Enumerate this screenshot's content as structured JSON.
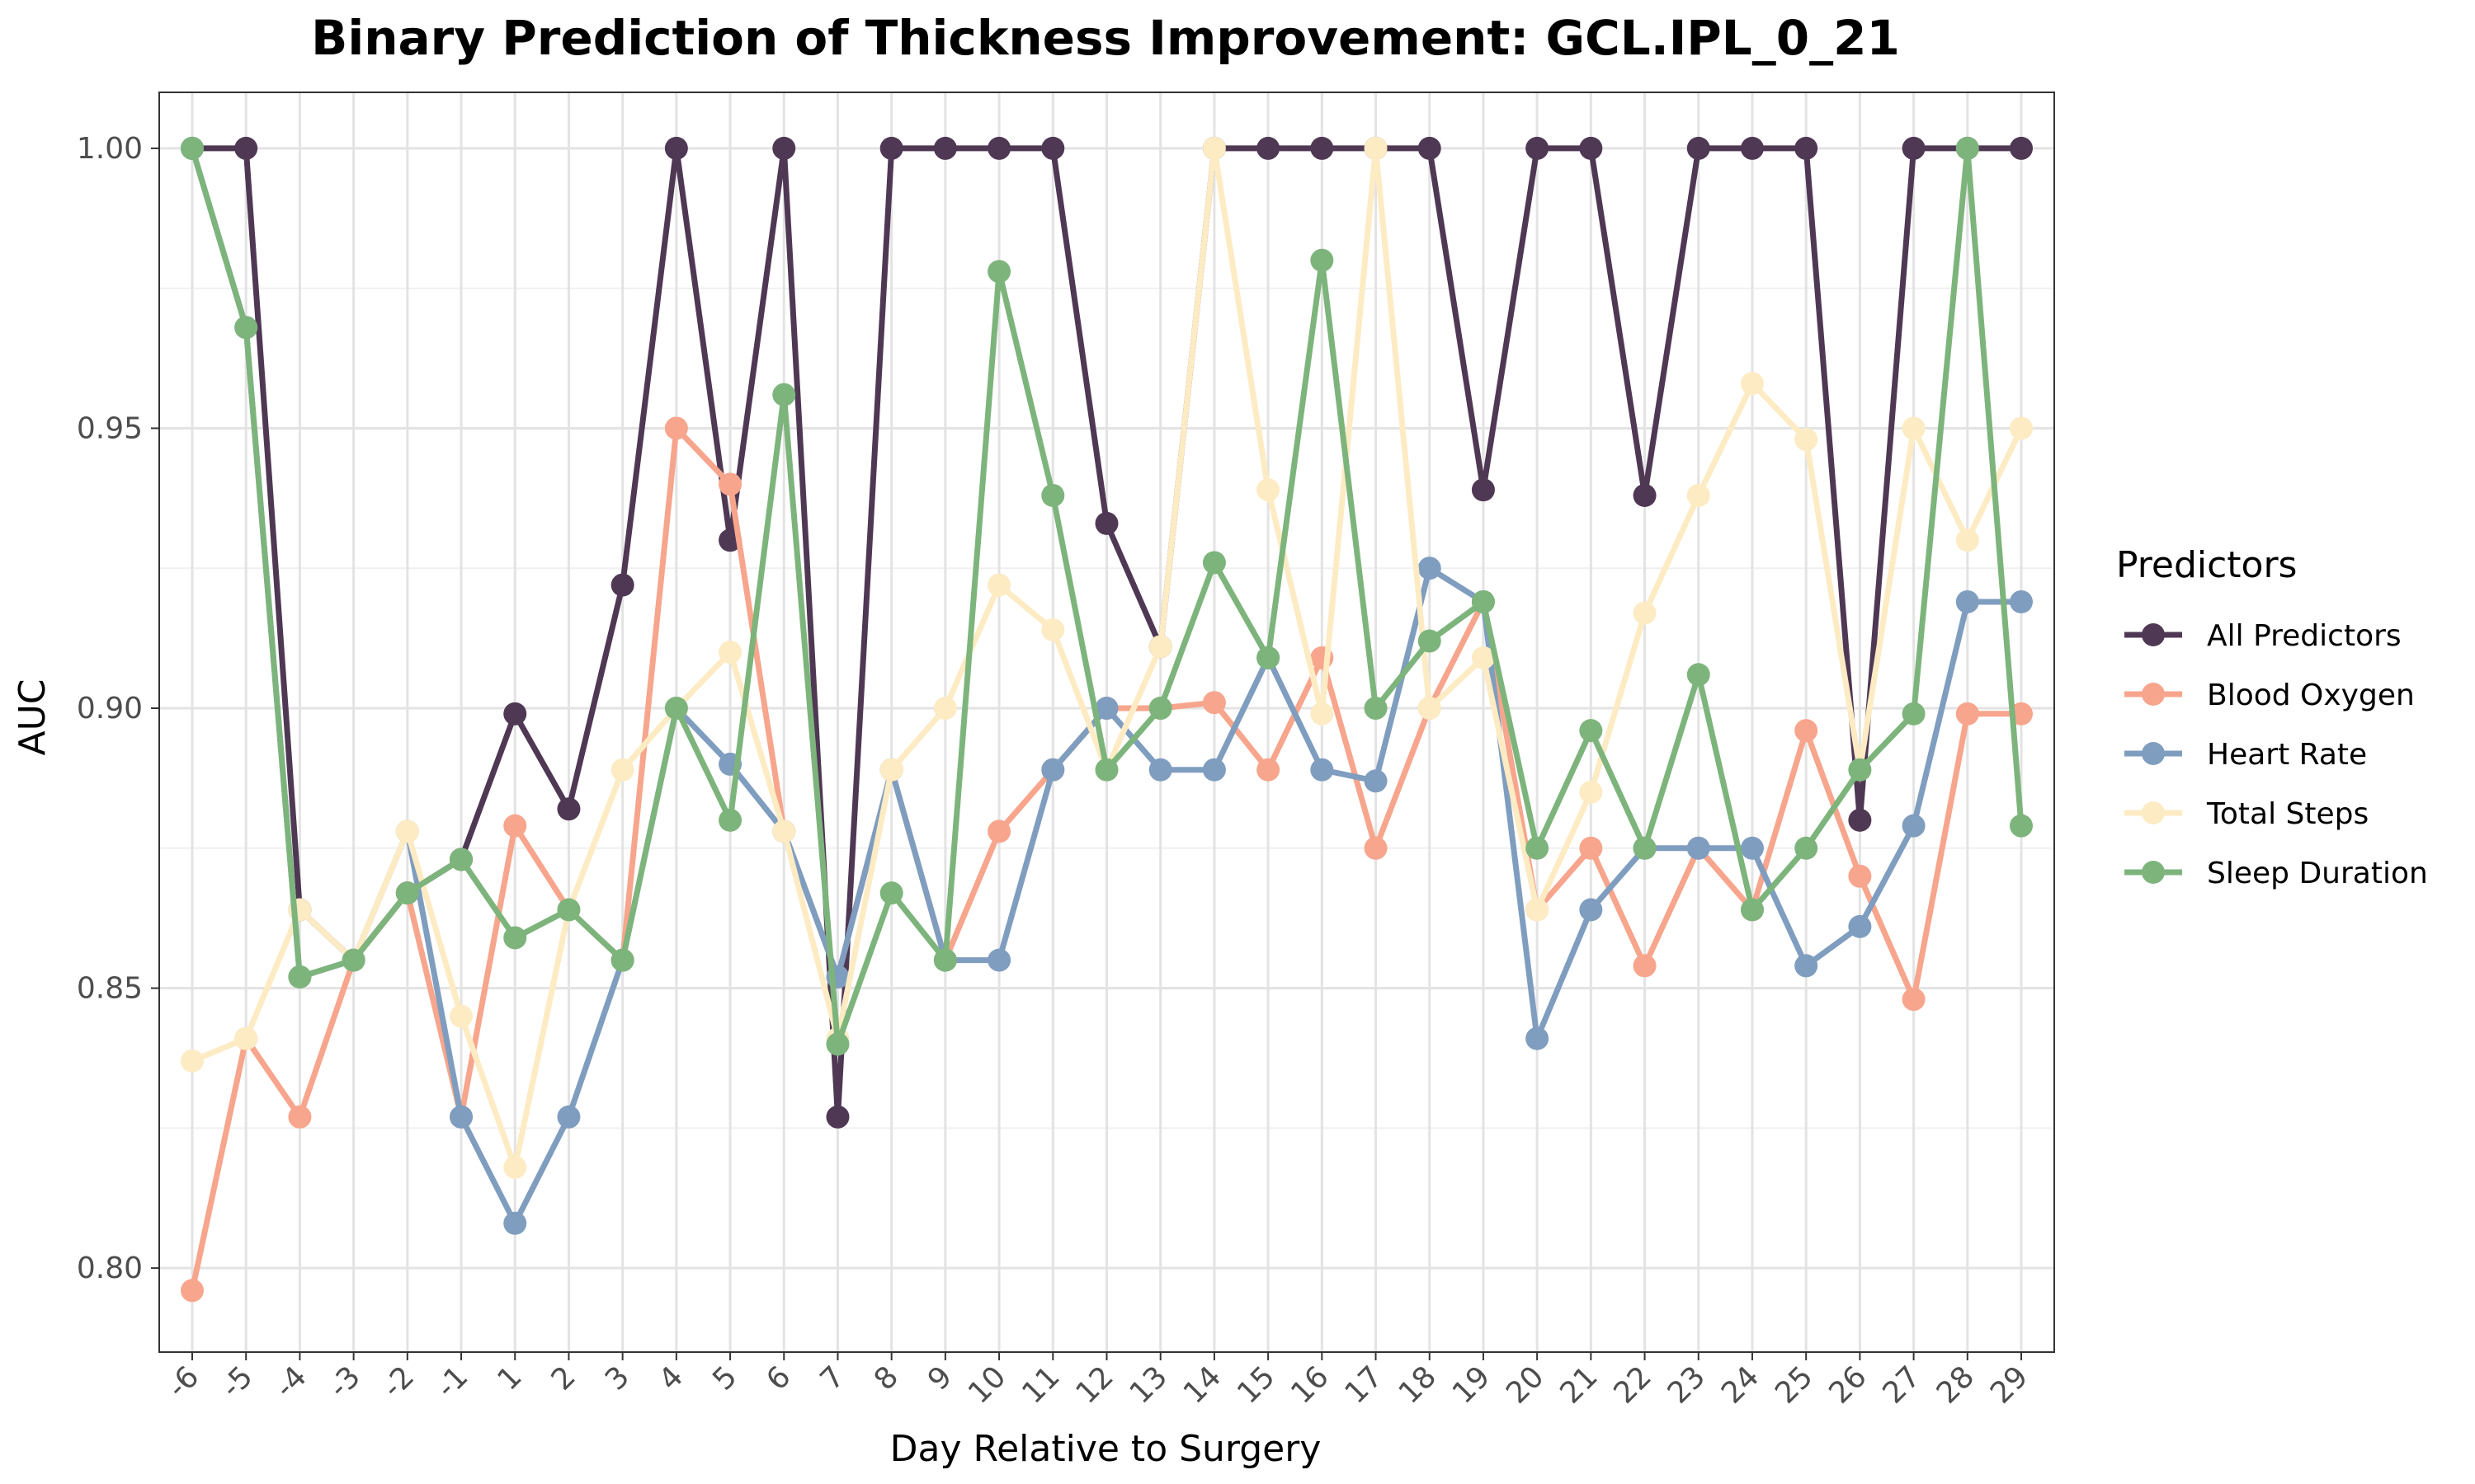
{
  "chart_data": {
    "type": "line",
    "title": "Binary Prediction of Thickness Improvement: GCL.IPL_0_21",
    "xlabel": "Day Relative to Surgery",
    "ylabel": "AUC",
    "ylim": [
      0.785,
      1.01
    ],
    "yticks": [
      0.8,
      0.85,
      0.9,
      0.95,
      1.0
    ],
    "ytick_labels": [
      "0.80",
      "0.85",
      "0.90",
      "0.95",
      "1.00"
    ],
    "grid": true,
    "legend": {
      "title": "Predictors",
      "placement": "right"
    },
    "categories": [
      "-6",
      "-5",
      "-4",
      "-3",
      "-2",
      "-1",
      "1",
      "2",
      "3",
      "4",
      "5",
      "6",
      "7",
      "8",
      "9",
      "10",
      "11",
      "12",
      "13",
      "14",
      "15",
      "16",
      "17",
      "18",
      "19",
      "20",
      "21",
      "22",
      "23",
      "24",
      "25",
      "26",
      "27",
      "28",
      "29"
    ],
    "series": [
      {
        "name": "All Predictors",
        "color": "#4f3854",
        "values": [
          1.0,
          1.0,
          0.864,
          0.855,
          0.867,
          0.873,
          0.899,
          0.882,
          0.922,
          1.0,
          0.93,
          1.0,
          0.827,
          1.0,
          1.0,
          1.0,
          1.0,
          0.933,
          0.911,
          1.0,
          1.0,
          1.0,
          1.0,
          1.0,
          0.939,
          1.0,
          1.0,
          0.938,
          1.0,
          1.0,
          1.0,
          0.88,
          1.0,
          1.0,
          1.0
        ]
      },
      {
        "name": "Blood Oxygen",
        "color": "#f7a58c",
        "values": [
          0.796,
          0.841,
          0.827,
          0.855,
          0.867,
          0.827,
          0.879,
          0.864,
          0.855,
          0.95,
          0.94,
          0.878,
          0.852,
          0.889,
          0.855,
          0.878,
          0.889,
          0.9,
          0.9,
          0.901,
          0.889,
          0.909,
          0.875,
          0.9,
          0.919,
          0.864,
          0.875,
          0.854,
          0.875,
          0.864,
          0.896,
          0.87,
          0.848,
          0.899,
          0.899
        ]
      },
      {
        "name": "Heart Rate",
        "color": "#7f9dbf",
        "values": [
          1.0,
          0.968,
          0.852,
          0.855,
          0.878,
          0.827,
          0.808,
          0.827,
          0.855,
          0.9,
          0.89,
          0.878,
          0.852,
          0.889,
          0.855,
          0.855,
          0.889,
          0.9,
          0.889,
          0.889,
          0.909,
          0.889,
          0.887,
          0.925,
          0.919,
          0.841,
          0.864,
          0.875,
          0.875,
          0.875,
          0.854,
          0.861,
          0.879,
          0.919,
          0.919
        ]
      },
      {
        "name": "Total Steps",
        "color": "#fdebc4",
        "values": [
          0.837,
          0.841,
          0.864,
          0.855,
          0.878,
          0.845,
          0.818,
          0.864,
          0.889,
          0.9,
          0.91,
          0.878,
          0.841,
          0.889,
          0.9,
          0.922,
          0.914,
          0.889,
          0.911,
          1.0,
          0.939,
          0.899,
          1.0,
          0.9,
          0.909,
          0.864,
          0.885,
          0.917,
          0.938,
          0.958,
          0.948,
          0.889,
          0.95,
          0.93,
          0.95
        ]
      },
      {
        "name": "Sleep Duration",
        "color": "#7db47c",
        "values": [
          1.0,
          0.968,
          0.852,
          0.855,
          0.867,
          0.873,
          0.859,
          0.864,
          0.855,
          0.9,
          0.88,
          0.956,
          0.84,
          0.867,
          0.855,
          0.978,
          0.938,
          0.889,
          0.9,
          0.926,
          0.909,
          0.98,
          0.9,
          0.912,
          0.919,
          0.875,
          0.896,
          0.875,
          0.906,
          0.864,
          0.875,
          0.889,
          0.899,
          1.0,
          0.879
        ]
      }
    ]
  }
}
